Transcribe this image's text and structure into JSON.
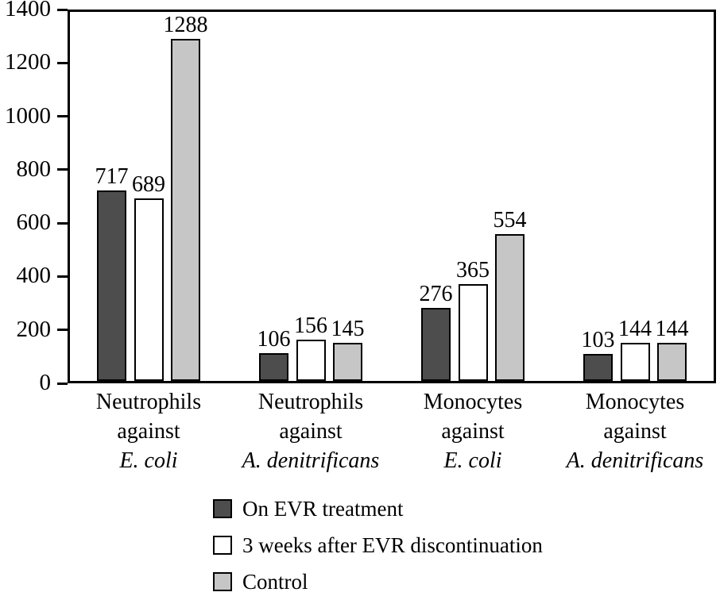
{
  "figure": {
    "background": "#ffffff",
    "frame_color": "#000000",
    "text_color": "#000000"
  },
  "chart_data": {
    "type": "bar",
    "title": "",
    "xlabel": "",
    "ylabel": "",
    "ylim": [
      0,
      1400
    ],
    "yticks": [
      0,
      200,
      400,
      600,
      800,
      1000,
      1200,
      1400
    ],
    "grid": false,
    "value_labels": true,
    "legend_position": "bottom",
    "bar_border_color": "#000000",
    "categories": [
      {
        "line1": "Neutrophils",
        "line2": "against",
        "species": "E. coli"
      },
      {
        "line1": "Neutrophils",
        "line2": "against",
        "species": "A. denitrificans"
      },
      {
        "line1": "Monocytes",
        "line2": "against",
        "species": "E. coli"
      },
      {
        "line1": "Monocytes",
        "line2": "against",
        "species": "A. denitrificans"
      }
    ],
    "series": [
      {
        "name": "On EVR treatment",
        "fill": "#4d4d4d",
        "values": [
          717,
          106,
          276,
          103
        ]
      },
      {
        "name": "3 weeks after EVR discontinuation",
        "fill": "#ffffff",
        "values": [
          689,
          156,
          365,
          144
        ]
      },
      {
        "name": "Control",
        "fill": "#c6c6c6",
        "values": [
          1288,
          145,
          554,
          144
        ]
      }
    ]
  }
}
